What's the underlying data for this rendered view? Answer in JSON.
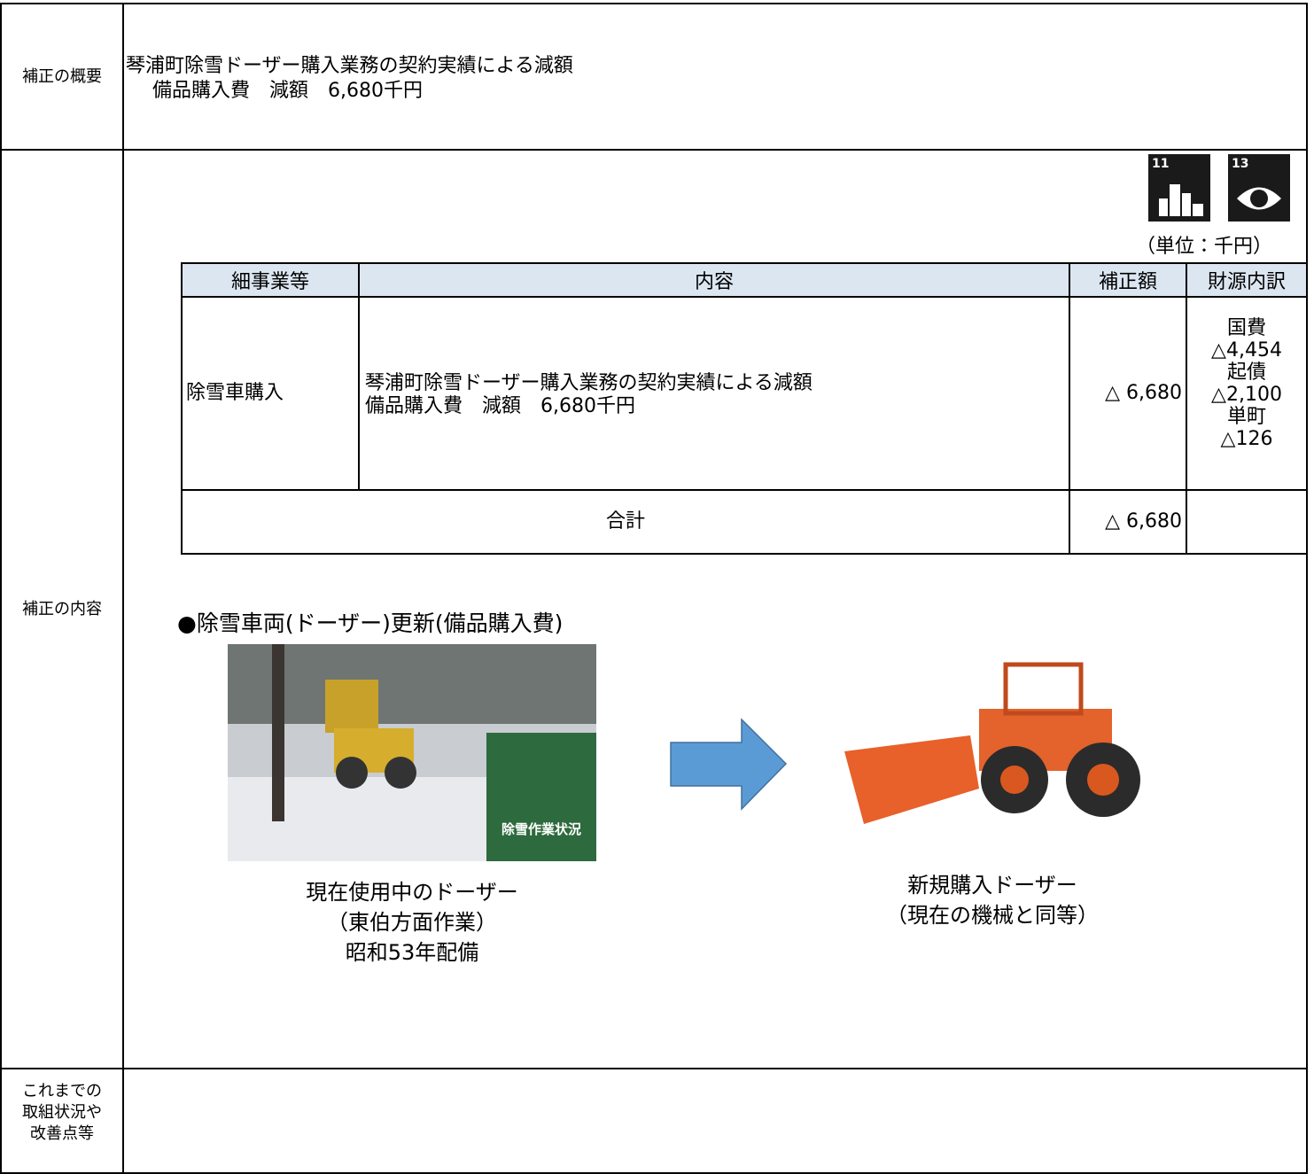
{
  "summary": {
    "label": "補正の概要",
    "lines": [
      "琴浦町除雪ドーザー購入業務の契約実績による減額",
      "備品購入費　減額　6,680千円"
    ]
  },
  "content": {
    "label": "補正の内容",
    "sdg_icons": [
      "11",
      "13"
    ],
    "unit": "（単位：千円）",
    "table": {
      "headers": [
        "細事業等",
        "内容",
        "補正額",
        "財源内訳"
      ],
      "rows": [
        [
          "除雪車購入",
          [
            "琴浦町除雪ドーザー購入業務の契約実績による減額",
            "備品購入費　減額　6,680千円"
          ],
          "△ 6,680",
          [
            "国費",
            "△4,454",
            "起債",
            "△2,100",
            "単町",
            "△126"
          ]
        ]
      ],
      "total": {
        "label": "合計",
        "amount": "△ 6,680"
      }
    },
    "heading": "●除雪車両(ドーザー)更新(備品購入費)",
    "photo_current": {
      "sign": "除雪作業状況",
      "caption": [
        "現在使用中のドーザー",
        "（東伯方面作業）",
        "昭和53年配備"
      ]
    },
    "photo_new": {
      "caption": [
        "新規購入ドーザー",
        "（現在の機械と同等）"
      ]
    }
  },
  "history": {
    "label": [
      "これまでの",
      "取組状況や",
      "改善点等"
    ]
  }
}
